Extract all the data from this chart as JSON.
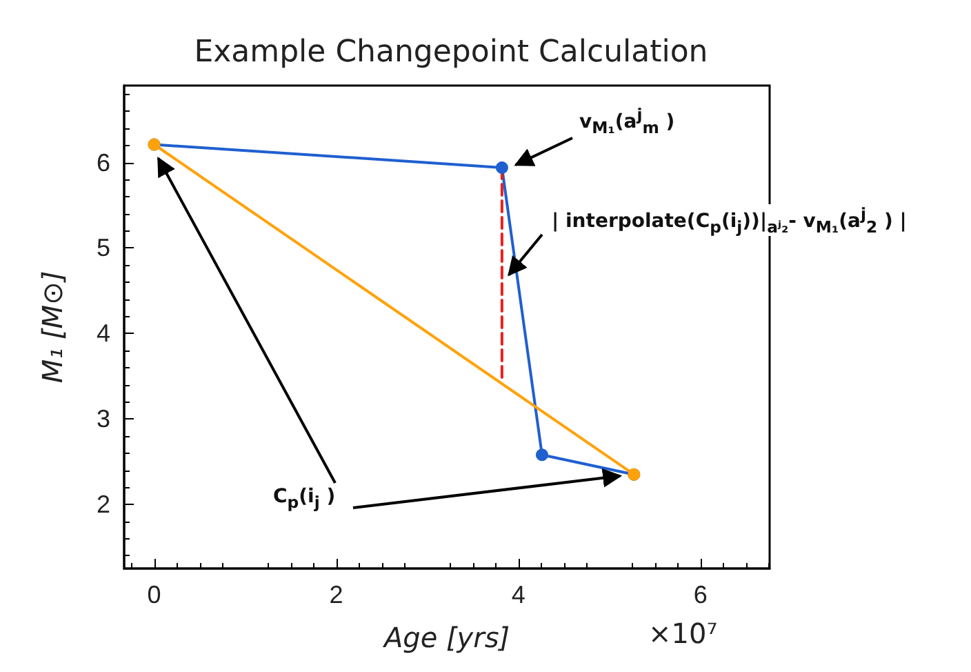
{
  "chart_data": {
    "type": "line",
    "title": "Example Changepoint Calculation",
    "xlabel": "Age [yrs]",
    "ylabel": "M₁ [M⊙]",
    "xlim": [
      -0.33,
      6.76
    ],
    "ylim": [
      1.25,
      6.9
    ],
    "xticks": [
      0,
      2,
      4,
      6
    ],
    "yticks": [
      2,
      3,
      4,
      5,
      6
    ],
    "grid": false,
    "marker": "circle",
    "series": [
      {
        "color": "#1f5fd0",
        "x": [
          0,
          3.82,
          4.26,
          5.27
        ],
        "values": [
          6.21,
          5.94,
          2.58,
          2.35
        ]
      },
      {
        "color": "#ffa20a",
        "x": [
          0,
          5.27
        ],
        "values": [
          6.21,
          2.35
        ]
      },
      {
        "color": "#e8201c",
        "x": [
          3.82,
          3.82
        ],
        "values": [
          5.94,
          3.43
        ],
        "line_style": "dashed",
        "marker": "none"
      }
    ],
    "annotations": [
      "v$_{M₁}$(a$^{j}$$_{m}$ )",
      "| interpolate(C$_{p}$(i$_{j}$))|$_{aʲ₂}$- v$_{M₁}$(a$^{j}$$_{2}$ ) |",
      "C$_{p}$(i$_{j}$ )",
      "×10⁷"
    ]
  }
}
